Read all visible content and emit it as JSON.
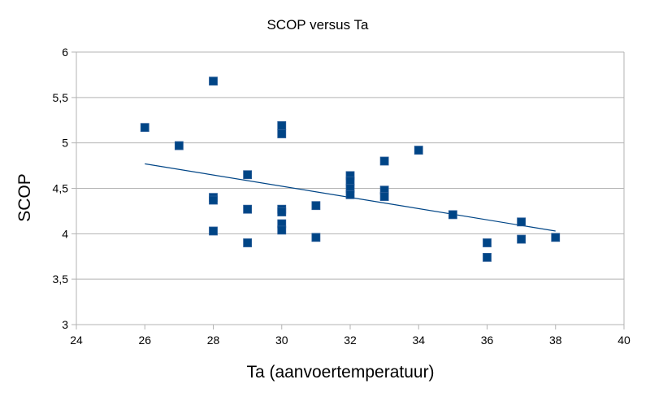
{
  "chart_data": {
    "type": "scatter",
    "title": "SCOP versus Ta",
    "xlabel": "Ta (aanvoertemperatuur)",
    "ylabel": "SCOP",
    "xlim": [
      24,
      40
    ],
    "ylim": [
      3,
      6
    ],
    "xticks": [
      "24",
      "26",
      "28",
      "30",
      "32",
      "34",
      "36",
      "38",
      "40"
    ],
    "yticks": [
      "3",
      "3,5",
      "4",
      "4,5",
      "5",
      "5,5",
      "6"
    ],
    "grid": "horizontal",
    "marker_color": "#004586",
    "trendline_color": "#004586",
    "points": [
      {
        "x": 26,
        "y": 5.17
      },
      {
        "x": 27,
        "y": 4.97
      },
      {
        "x": 28,
        "y": 5.68
      },
      {
        "x": 28,
        "y": 4.4
      },
      {
        "x": 28,
        "y": 4.37
      },
      {
        "x": 28,
        "y": 4.03
      },
      {
        "x": 29,
        "y": 4.65
      },
      {
        "x": 29,
        "y": 4.27
      },
      {
        "x": 29,
        "y": 3.9
      },
      {
        "x": 30,
        "y": 5.19
      },
      {
        "x": 30,
        "y": 5.1
      },
      {
        "x": 30,
        "y": 4.27
      },
      {
        "x": 30,
        "y": 4.24
      },
      {
        "x": 30,
        "y": 4.11
      },
      {
        "x": 30,
        "y": 4.04
      },
      {
        "x": 31,
        "y": 4.31
      },
      {
        "x": 31,
        "y": 3.96
      },
      {
        "x": 32,
        "y": 4.64
      },
      {
        "x": 32,
        "y": 4.58
      },
      {
        "x": 32,
        "y": 4.5
      },
      {
        "x": 32,
        "y": 4.43
      },
      {
        "x": 33,
        "y": 4.8
      },
      {
        "x": 33,
        "y": 4.48
      },
      {
        "x": 33,
        "y": 4.41
      },
      {
        "x": 34,
        "y": 4.92
      },
      {
        "x": 35,
        "y": 4.21
      },
      {
        "x": 36,
        "y": 3.9
      },
      {
        "x": 36,
        "y": 3.74
      },
      {
        "x": 37,
        "y": 4.13
      },
      {
        "x": 37,
        "y": 3.94
      },
      {
        "x": 38,
        "y": 3.96
      }
    ],
    "trendline": {
      "x": [
        26,
        38
      ],
      "y": [
        4.77,
        4.03
      ]
    }
  }
}
